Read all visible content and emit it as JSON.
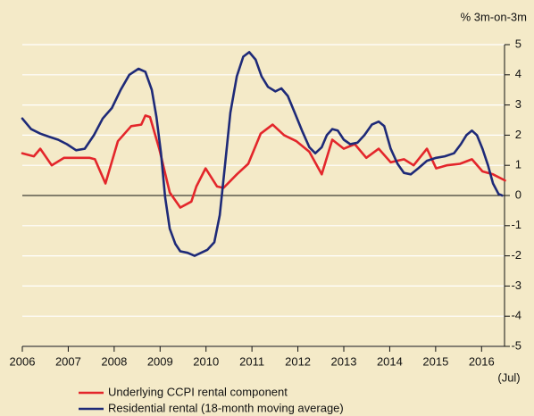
{
  "chart_data": {
    "type": "line",
    "y_unit_label": "% 3m-on-3m",
    "annotation": "(Jul)",
    "xlim": [
      2006,
      2016.5
    ],
    "xticks": [
      2006,
      2007,
      2008,
      2009,
      2010,
      2011,
      2012,
      2013,
      2014,
      2015,
      2016
    ],
    "ylim": [
      -5,
      5
    ],
    "yticks": [
      -5,
      -4,
      -3,
      -2,
      -1,
      0,
      1,
      2,
      3,
      4,
      5
    ],
    "y_axis_side": "right",
    "grid": true,
    "series": [
      {
        "name": "Underlying CCPI rental component",
        "color": "#e3262b",
        "x": [
          2006.0,
          2006.25,
          2006.39,
          2006.64,
          2006.91,
          2007.23,
          2007.46,
          2007.58,
          2007.81,
          2008.08,
          2008.37,
          2008.59,
          2008.68,
          2008.78,
          2008.98,
          2009.21,
          2009.44,
          2009.68,
          2009.79,
          2009.99,
          2010.24,
          2010.38,
          2010.67,
          2010.92,
          2011.19,
          2011.45,
          2011.7,
          2011.97,
          2012.25,
          2012.52,
          2012.75,
          2013.0,
          2013.24,
          2013.49,
          2013.76,
          2014.02,
          2014.31,
          2014.52,
          2014.81,
          2015.01,
          2015.24,
          2015.53,
          2015.79,
          2016.02,
          2016.25,
          2016.51
        ],
        "values": [
          1.4,
          1.3,
          1.55,
          1.0,
          1.25,
          1.25,
          1.25,
          1.2,
          0.4,
          1.8,
          2.3,
          2.35,
          2.65,
          2.6,
          1.55,
          0.1,
          -0.4,
          -0.2,
          0.3,
          0.9,
          0.3,
          0.25,
          0.7,
          1.05,
          2.05,
          2.35,
          2.0,
          1.8,
          1.45,
          0.7,
          1.85,
          1.55,
          1.7,
          1.25,
          1.55,
          1.1,
          1.2,
          1.0,
          1.55,
          0.9,
          1.0,
          1.05,
          1.2,
          0.8,
          0.7,
          0.5
        ]
      },
      {
        "name": "Residential rental (18-month moving average)",
        "color": "#1e2a78",
        "x": [
          2006.0,
          2006.19,
          2006.39,
          2006.58,
          2006.78,
          2006.97,
          2007.17,
          2007.36,
          2007.56,
          2007.75,
          2007.95,
          2008.14,
          2008.33,
          2008.53,
          2008.68,
          2008.82,
          2008.92,
          2009.02,
          2009.11,
          2009.21,
          2009.33,
          2009.44,
          2009.6,
          2009.75,
          2009.89,
          2010.03,
          2010.18,
          2010.3,
          2010.42,
          2010.53,
          2010.67,
          2010.81,
          2010.94,
          2011.08,
          2011.21,
          2011.35,
          2011.51,
          2011.64,
          2011.78,
          2011.93,
          2012.09,
          2012.25,
          2012.38,
          2012.52,
          2012.63,
          2012.75,
          2012.87,
          2013.0,
          2013.14,
          2013.3,
          2013.45,
          2013.61,
          2013.76,
          2013.88,
          2014.02,
          2014.17,
          2014.31,
          2014.46,
          2014.62,
          2014.81,
          2015.01,
          2015.2,
          2015.4,
          2015.55,
          2015.67,
          2015.79,
          2015.9,
          2016.02,
          2016.14,
          2016.25,
          2016.37,
          2016.45
        ],
        "values": [
          2.55,
          2.2,
          2.05,
          1.95,
          1.85,
          1.7,
          1.5,
          1.55,
          2.0,
          2.55,
          2.9,
          3.5,
          4.0,
          4.2,
          4.1,
          3.5,
          2.6,
          1.4,
          -0.05,
          -1.1,
          -1.6,
          -1.85,
          -1.9,
          -2.0,
          -1.9,
          -1.8,
          -1.55,
          -0.65,
          1.1,
          2.75,
          3.95,
          4.6,
          4.75,
          4.5,
          3.95,
          3.6,
          3.45,
          3.55,
          3.3,
          2.75,
          2.15,
          1.6,
          1.4,
          1.6,
          2.0,
          2.2,
          2.15,
          1.85,
          1.7,
          1.75,
          2.0,
          2.35,
          2.45,
          2.3,
          1.55,
          1.05,
          0.75,
          0.7,
          0.9,
          1.15,
          1.25,
          1.3,
          1.4,
          1.7,
          2.0,
          2.15,
          2.0,
          1.55,
          1.0,
          0.4,
          0.05,
          0
        ]
      }
    ]
  }
}
